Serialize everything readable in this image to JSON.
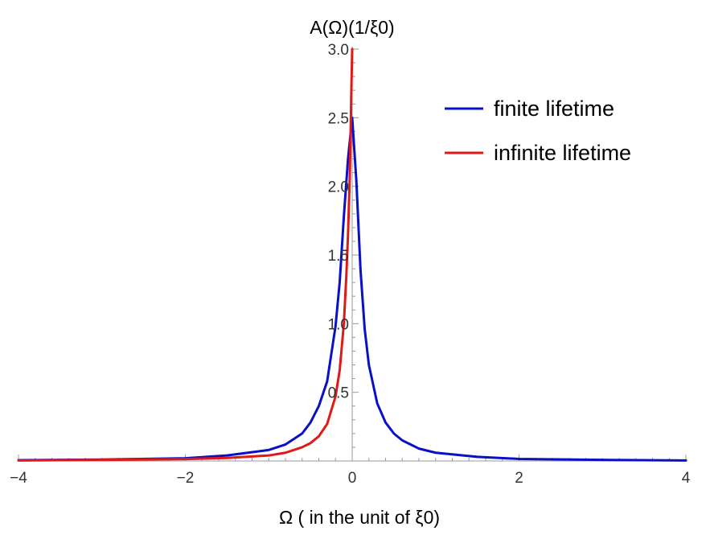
{
  "chart_data": {
    "type": "line",
    "xlabel": "Ω ( in the unit of ξ0)",
    "ylabel": "A(Ω)(1/ξ0)",
    "xlim": [
      -4,
      4
    ],
    "ylim": [
      0,
      3.0
    ],
    "x_ticks": [
      {
        "value": -4,
        "label": "−4"
      },
      {
        "value": -2,
        "label": "−2"
      },
      {
        "value": 0,
        "label": "0"
      },
      {
        "value": 2,
        "label": "2"
      },
      {
        "value": 4,
        "label": "4"
      }
    ],
    "y_ticks": [
      {
        "value": 0.5,
        "label": "0.5"
      },
      {
        "value": 1.0,
        "label": "1.0"
      },
      {
        "value": 1.5,
        "label": "1.5"
      },
      {
        "value": 2.0,
        "label": "2.0"
      },
      {
        "value": 2.5,
        "label": "2.5"
      },
      {
        "value": 3.0,
        "label": "3.0"
      }
    ],
    "grid": false,
    "legend_position": "top-right",
    "series": [
      {
        "name": "finite lifetime",
        "color": "#0a10c8",
        "x": [
          -4,
          -3,
          -2,
          -1.5,
          -1,
          -0.8,
          -0.6,
          -0.5,
          -0.4,
          -0.3,
          -0.2,
          -0.15,
          -0.1,
          -0.05,
          0,
          0.05,
          0.1,
          0.15,
          0.2,
          0.3,
          0.4,
          0.5,
          0.6,
          0.8,
          1,
          1.5,
          2,
          3,
          4
        ],
        "y": [
          0.006,
          0.01,
          0.02,
          0.04,
          0.08,
          0.12,
          0.2,
          0.28,
          0.4,
          0.58,
          0.98,
          1.3,
          1.78,
          2.2,
          2.5,
          2.04,
          1.39,
          0.96,
          0.7,
          0.42,
          0.28,
          0.2,
          0.15,
          0.09,
          0.06,
          0.03,
          0.015,
          0.008,
          0.004
        ]
      },
      {
        "name": "infinite lifetime",
        "color": "#e01818",
        "x": [
          -4,
          -3,
          -2,
          -1.5,
          -1,
          -0.8,
          -0.6,
          -0.5,
          -0.4,
          -0.3,
          -0.2,
          -0.15,
          -0.1,
          -0.07,
          -0.05,
          -0.03,
          -0.02,
          -0.01,
          0
        ],
        "y": [
          0.004,
          0.008,
          0.014,
          0.022,
          0.04,
          0.06,
          0.1,
          0.13,
          0.18,
          0.27,
          0.47,
          0.66,
          1.0,
          1.35,
          1.65,
          2.05,
          2.35,
          2.7,
          3.0
        ]
      }
    ]
  }
}
